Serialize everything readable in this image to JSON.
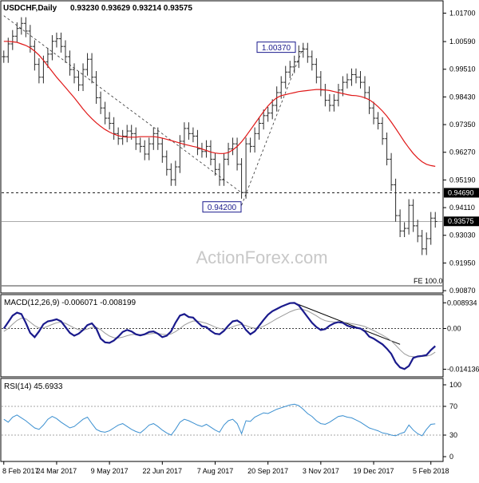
{
  "header": {
    "symbol": "USDCHF,Daily",
    "ohlc": "0.93230 0.93629 0.93214 0.93575"
  },
  "watermark": "ActionForex.com",
  "colors": {
    "price_bars": "#2b2b2b",
    "moving_average": "#e01818",
    "macd_line": "#1a1a8c",
    "signal_line": "#9a9a9a",
    "rsi_line": "#3a8fd0",
    "frame": "#000000",
    "dashed_level": "#000000",
    "highlight_label_bg": "#000000",
    "highlight_label_text": "#ffffff"
  },
  "chart_data": [
    {
      "type": "bar",
      "panel": "price",
      "title": "USDCHF,Daily 0.93230 0.93629 0.93214 0.93575",
      "x_tick_labels": [
        "8 Feb 2017",
        "24 Mar 2017",
        "9 May 2017",
        "22 Jun 2017",
        "7 Aug 2017",
        "20 Sep 2017",
        "3 Nov 2017",
        "19 Dec 2017",
        "5 Feb 2018"
      ],
      "y_tick_labels": [
        "1.01700",
        "1.00590",
        "0.99510",
        "0.98430",
        "0.97350",
        "0.96270",
        "0.95190",
        "0.94110",
        "0.93030",
        "0.91950",
        "0.90870"
      ],
      "ylim": [
        0.9081,
        1.0215
      ],
      "grid": false,
      "close": [
        1.0,
        1.005,
        1.008,
        1.011,
        1.013,
        1.01,
        1.004,
        0.997,
        0.992,
        0.998,
        1.001,
        1.006,
        1.007,
        1.004,
        1.0,
        0.995,
        0.992,
        0.989,
        0.995,
        0.999,
        0.992,
        0.984,
        0.98,
        0.976,
        0.974,
        0.97,
        0.968,
        0.969,
        0.971,
        0.97,
        0.966,
        0.965,
        0.962,
        0.966,
        0.97,
        0.966,
        0.961,
        0.956,
        0.952,
        0.957,
        0.967,
        0.972,
        0.97,
        0.969,
        0.964,
        0.963,
        0.965,
        0.96,
        0.956,
        0.952,
        0.96,
        0.964,
        0.966,
        0.958,
        0.947,
        0.966,
        0.965,
        0.97,
        0.974,
        0.977,
        0.978,
        0.981,
        0.986,
        0.99,
        0.994,
        0.996,
        0.998,
        1.002,
        1.003,
        1.0,
        0.997,
        0.992,
        0.987,
        0.983,
        0.981,
        0.983,
        0.987,
        0.99,
        0.991,
        0.993,
        0.992,
        0.99,
        0.986,
        0.98,
        0.976,
        0.974,
        0.968,
        0.96,
        0.95,
        0.938,
        0.932,
        0.933,
        0.942,
        0.934,
        0.93,
        0.925,
        0.929,
        0.937,
        0.9357
      ],
      "series": [
        {
          "name": "",
          "style": "moving-average",
          "values": [
            1.006,
            1.006,
            1.0058,
            1.0056,
            1.005,
            1.0044,
            1.0035,
            1.0022,
            1.0006,
            0.9986,
            0.9964,
            0.9942,
            0.992,
            0.99,
            0.988,
            0.986,
            0.984,
            0.9818,
            0.9796,
            0.9776,
            0.9758,
            0.9742,
            0.9728,
            0.9716,
            0.9706,
            0.9698,
            0.9692,
            0.9688,
            0.9686,
            0.9686,
            0.9686,
            0.9688,
            0.9688,
            0.9688,
            0.9688,
            0.9686,
            0.9682,
            0.9678,
            0.9673,
            0.9668,
            0.9663,
            0.9658,
            0.9654,
            0.965,
            0.9646,
            0.964,
            0.9634,
            0.9628,
            0.9624,
            0.9622,
            0.9622,
            0.9626,
            0.9636,
            0.965,
            0.9668,
            0.969,
            0.9714,
            0.9738,
            0.9762,
            0.9786,
            0.9808,
            0.9826,
            0.984,
            0.9848,
            0.9852,
            0.9856,
            0.986,
            0.9864,
            0.9866,
            0.9868,
            0.987,
            0.9872,
            0.9872,
            0.987,
            0.9868,
            0.9864,
            0.986,
            0.9856,
            0.9852,
            0.9849,
            0.9848,
            0.9845,
            0.984,
            0.9832,
            0.982,
            0.9805,
            0.9788,
            0.9768,
            0.9745,
            0.972,
            0.9694,
            0.9668,
            0.9644,
            0.9622,
            0.9604,
            0.959,
            0.958,
            0.9575,
            0.9572
          ]
        }
      ],
      "annotations": [
        {
          "label": "1.00370",
          "value": 1.0037,
          "style": "boxed"
        },
        {
          "label": "0.94200",
          "value": 0.942,
          "style": "boxed"
        },
        {
          "label": "0.94690",
          "value": 0.9469,
          "style": "dashed-level-highlight"
        },
        {
          "label": "0.93575",
          "value": 0.93575,
          "style": "current-price-highlight"
        },
        {
          "label": "FE 100.0",
          "value": 0.9106,
          "style": "level"
        }
      ],
      "trendlines": [
        {
          "from_value": 1.016,
          "to_value": 0.9469,
          "style": "dashed"
        },
        {
          "from_value": 0.942,
          "to_value": 1.0037,
          "style": "dashed"
        }
      ]
    },
    {
      "type": "line",
      "panel": "macd",
      "title": "MACD(12,26,9) -0.006071 -0.008199",
      "y_tick_labels": [
        "0.008934",
        "0.00",
        "-0.014136"
      ],
      "ylim": [
        -0.0165,
        0.0115
      ],
      "grid": false,
      "series": [
        {
          "name": "",
          "values": [
            0.0,
            0.0022,
            0.0045,
            0.0055,
            0.005,
            0.002,
            -0.0015,
            -0.003,
            -0.001,
            0.0015,
            0.0025,
            0.0028,
            0.0032,
            0.0025,
            0.0005,
            -0.0015,
            -0.0025,
            -0.0018,
            -0.0005,
            0.0012,
            0.0018,
            0.0,
            -0.0035,
            -0.0048,
            -0.005,
            -0.0042,
            -0.0028,
            -0.0012,
            -0.0005,
            -0.001,
            -0.002,
            -0.0024,
            -0.002,
            -0.0012,
            -0.001,
            -0.0018,
            -0.003,
            -0.0025,
            -0.001,
            0.002,
            0.0045,
            0.005,
            0.004,
            0.0038,
            0.0022,
            0.0008,
            0.0005,
            -0.0008,
            -0.0018,
            -0.002,
            -0.0008,
            0.001,
            0.0025,
            0.0028,
            0.0018,
            -0.0005,
            -0.002,
            -0.001,
            0.001,
            0.003,
            0.0048,
            0.006,
            0.0068,
            0.0076,
            0.0082,
            0.0088,
            0.0089,
            0.008,
            0.006,
            0.004,
            0.002,
            0.0005,
            -0.0005,
            -0.0002,
            0.001,
            0.0018,
            0.0022,
            0.002,
            0.001,
            0.0005,
            0.0003,
            0.0,
            -0.001,
            -0.0028,
            -0.0035,
            -0.0045,
            -0.0055,
            -0.007,
            -0.0088,
            -0.0118,
            -0.0135,
            -0.0141,
            -0.013,
            -0.0102,
            -0.0097,
            -0.0095,
            -0.0092,
            -0.0075,
            -0.0061
          ]
        },
        {
          "name": "",
          "values": [
            -0.001,
            0.0,
            0.0015,
            0.0028,
            0.0036,
            0.0034,
            0.0022,
            0.001,
            0.0002,
            0.0002,
            0.0008,
            0.0014,
            0.002,
            0.0022,
            0.0018,
            0.001,
            0.0002,
            -0.0004,
            -0.0006,
            -0.0002,
            0.0004,
            0.0004,
            -0.0004,
            -0.0016,
            -0.0026,
            -0.0032,
            -0.0033,
            -0.003,
            -0.0025,
            -0.0021,
            -0.002,
            -0.0021,
            -0.0021,
            -0.0019,
            -0.0017,
            -0.0017,
            -0.002,
            -0.0021,
            -0.0019,
            -0.0011,
            0.0,
            0.0012,
            0.002,
            0.0026,
            0.0026,
            0.0022,
            0.0018,
            0.0012,
            0.0005,
            0.0,
            -0.0002,
            0.0,
            0.0006,
            0.0012,
            0.0014,
            0.001,
            0.0004,
            0.0001,
            0.0002,
            0.0008,
            0.0016,
            0.0025,
            0.0034,
            0.0042,
            0.005,
            0.0058,
            0.0064,
            0.0068,
            0.0066,
            0.0061,
            0.0053,
            0.0044,
            0.0034,
            0.0027,
            0.0024,
            0.0023,
            0.0023,
            0.0022,
            0.002,
            0.0017,
            0.0014,
            0.0011,
            0.0007,
            0.0,
            -0.0007,
            -0.0015,
            -0.0023,
            -0.0032,
            -0.0043,
            -0.0058,
            -0.0074,
            -0.0088,
            -0.0096,
            -0.0098,
            -0.0098,
            -0.0097,
            -0.0096,
            -0.0092,
            -0.0082
          ]
        }
      ],
      "trendlines": [
        {
          "from_value": 0.0089,
          "to_value": -0.0055,
          "style": "solid"
        }
      ]
    },
    {
      "type": "line",
      "panel": "rsi",
      "title": "RSI(14) 45.6933",
      "y_tick_labels": [
        "100",
        "70",
        "30",
        "0"
      ],
      "ylim": [
        0,
        100
      ],
      "reference_levels": [
        70,
        30
      ],
      "grid": false,
      "series": [
        {
          "name": "",
          "values": [
            52,
            48,
            55,
            58,
            54,
            50,
            45,
            40,
            38,
            44,
            52,
            56,
            53,
            48,
            44,
            40,
            42,
            47,
            52,
            55,
            46,
            38,
            35,
            34,
            36,
            40,
            44,
            46,
            42,
            38,
            35,
            33,
            38,
            44,
            46,
            42,
            37,
            33,
            30,
            38,
            48,
            52,
            50,
            47,
            44,
            42,
            45,
            41,
            37,
            34,
            44,
            50,
            52,
            46,
            32,
            50,
            49,
            55,
            58,
            61,
            60,
            63,
            66,
            68,
            70,
            72,
            73,
            71,
            66,
            60,
            56,
            50,
            46,
            45,
            48,
            52,
            56,
            57,
            55,
            54,
            51,
            48,
            44,
            40,
            38,
            36,
            33,
            32,
            30,
            29,
            32,
            34,
            44,
            37,
            32,
            29,
            38,
            45,
            45.7
          ]
        }
      ]
    }
  ]
}
